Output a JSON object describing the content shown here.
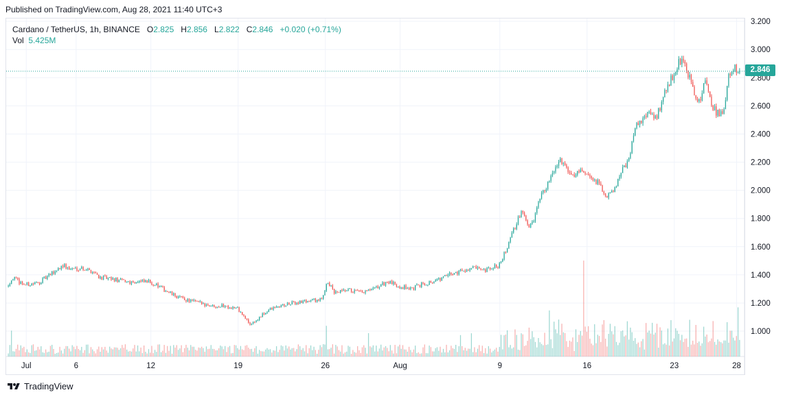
{
  "published": "Published on TradingView.com, Aug 28, 2021 11:40 UTC+3",
  "legend": {
    "symbol": "Cardano / TetherUS, 1h, BINANCE",
    "o_label": "O",
    "o": "2.825",
    "h_label": "H",
    "h": "2.856",
    "l_label": "L",
    "l": "2.822",
    "c_label": "C",
    "c": "2.846",
    "change": "+0.020 (+0.71%)"
  },
  "volume": {
    "label": "Vol",
    "value": "5.425M"
  },
  "last_price": "2.846",
  "footer": {
    "brand": "TradingView"
  },
  "colors": {
    "up": "#26a69a",
    "down": "#ef5350",
    "grid": "#f0f3fa",
    "axis_text": "#131722"
  },
  "chart_data": {
    "type": "candlestick",
    "title": "Cardano / TetherUS, 1h, BINANCE",
    "interval": "1h",
    "ylim": [
      0.82,
      3.22
    ],
    "y_ticks": [
      1.0,
      1.2,
      1.4,
      1.6,
      1.8,
      2.0,
      2.2,
      2.4,
      2.6,
      2.8,
      3.0,
      3.2
    ],
    "y_tick_labels": [
      "1.000",
      "1.200",
      "1.400",
      "1.600",
      "1.800",
      "2.000",
      "2.200",
      "2.400",
      "2.600",
      "2.800",
      "3.000",
      "3.200"
    ],
    "x_ticks": [
      {
        "label": "Jul",
        "day": 2
      },
      {
        "label": "6",
        "day": 6
      },
      {
        "label": "12",
        "day": 12
      },
      {
        "label": "19",
        "day": 19
      },
      {
        "label": "26",
        "day": 26
      },
      {
        "label": "Aug",
        "day": 32
      },
      {
        "label": "9",
        "day": 40
      },
      {
        "label": "16",
        "day": 47
      },
      {
        "label": "23",
        "day": 54
      },
      {
        "label": "28",
        "day": 59
      }
    ],
    "x_range_days": [
      0.5,
      59.3
    ],
    "price_path": [
      [
        0.5,
        1.32
      ],
      [
        1.0,
        1.38
      ],
      [
        1.5,
        1.35
      ],
      [
        2.0,
        1.33
      ],
      [
        3.0,
        1.34
      ],
      [
        4.0,
        1.4
      ],
      [
        5.0,
        1.47
      ],
      [
        5.5,
        1.44
      ],
      [
        6.5,
        1.45
      ],
      [
        7.5,
        1.42
      ],
      [
        8.0,
        1.38
      ],
      [
        9.5,
        1.36
      ],
      [
        10.5,
        1.35
      ],
      [
        12.0,
        1.35
      ],
      [
        13.0,
        1.3
      ],
      [
        14.0,
        1.25
      ],
      [
        15.0,
        1.22
      ],
      [
        16.0,
        1.2
      ],
      [
        17.0,
        1.18
      ],
      [
        18.0,
        1.18
      ],
      [
        19.0,
        1.16
      ],
      [
        20.0,
        1.05
      ],
      [
        20.6,
        1.08
      ],
      [
        21.5,
        1.15
      ],
      [
        22.5,
        1.18
      ],
      [
        23.5,
        1.2
      ],
      [
        25.0,
        1.22
      ],
      [
        25.8,
        1.22
      ],
      [
        26.2,
        1.36
      ],
      [
        26.8,
        1.27
      ],
      [
        28.0,
        1.29
      ],
      [
        29.0,
        1.27
      ],
      [
        30.0,
        1.3
      ],
      [
        31.0,
        1.35
      ],
      [
        32.0,
        1.32
      ],
      [
        33.0,
        1.3
      ],
      [
        34.0,
        1.34
      ],
      [
        35.0,
        1.36
      ],
      [
        36.0,
        1.4
      ],
      [
        37.0,
        1.43
      ],
      [
        38.0,
        1.45
      ],
      [
        38.7,
        1.42
      ],
      [
        39.5,
        1.45
      ],
      [
        40.0,
        1.47
      ],
      [
        40.6,
        1.58
      ],
      [
        41.2,
        1.72
      ],
      [
        41.8,
        1.85
      ],
      [
        42.3,
        1.75
      ],
      [
        42.8,
        1.78
      ],
      [
        43.3,
        1.95
      ],
      [
        44.0,
        2.05
      ],
      [
        44.6,
        2.18
      ],
      [
        45.2,
        2.22
      ],
      [
        45.8,
        2.1
      ],
      [
        46.6,
        2.15
      ],
      [
        47.4,
        2.1
      ],
      [
        48.0,
        2.05
      ],
      [
        48.6,
        1.95
      ],
      [
        49.3,
        2.02
      ],
      [
        49.8,
        2.15
      ],
      [
        50.4,
        2.2
      ],
      [
        50.9,
        2.45
      ],
      [
        51.5,
        2.5
      ],
      [
        52.0,
        2.55
      ],
      [
        52.6,
        2.5
      ],
      [
        53.1,
        2.65
      ],
      [
        53.6,
        2.75
      ],
      [
        54.1,
        2.85
      ],
      [
        54.5,
        2.93
      ],
      [
        55.0,
        2.87
      ],
      [
        55.5,
        2.75
      ],
      [
        56.0,
        2.6
      ],
      [
        56.5,
        2.78
      ],
      [
        57.0,
        2.62
      ],
      [
        57.5,
        2.55
      ],
      [
        58.0,
        2.52
      ],
      [
        58.4,
        2.8
      ],
      [
        58.8,
        2.88
      ],
      [
        59.3,
        2.846
      ]
    ]
  }
}
